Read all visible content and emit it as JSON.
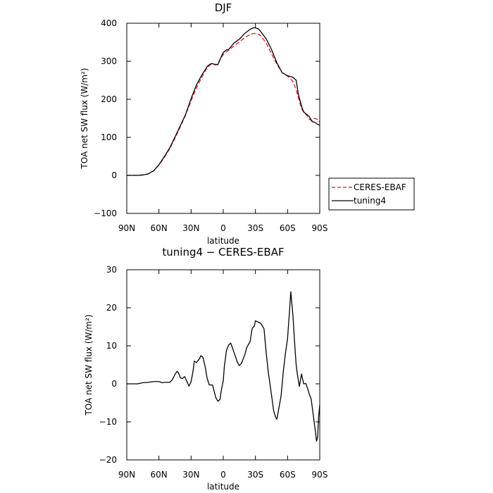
{
  "chart_data": [
    {
      "type": "line",
      "title": "DJF",
      "xlabel": "latitude",
      "ylabel": "TOA net SW flux (W/m²)",
      "xlim": [
        90,
        -90
      ],
      "ylim": [
        -100,
        400
      ],
      "x_ticks": [
        90,
        60,
        30,
        0,
        -30,
        -60,
        -90
      ],
      "x_tick_labels": [
        "90N",
        "60N",
        "30N",
        "0",
        "30S",
        "60S",
        "90S"
      ],
      "y_ticks": [
        -100,
        0,
        100,
        200,
        300,
        400
      ],
      "y_tick_labels": [
        "−100",
        "0",
        "100",
        "200",
        "300",
        "400"
      ],
      "legend_position": "right",
      "series": [
        {
          "name": "CERES-EBAF",
          "color": "#e41a1c",
          "dash": "dashed",
          "x": [
            90,
            85,
            80,
            75,
            70,
            65,
            60,
            55,
            50,
            45,
            40,
            35,
            30,
            25,
            20,
            15,
            12,
            10,
            8,
            5,
            3,
            0,
            -3,
            -5,
            -10,
            -15,
            -20,
            -25,
            -28,
            -30,
            -33,
            -35,
            -40,
            -45,
            -50,
            -55,
            -60,
            -65,
            -68,
            -70,
            -73,
            -75,
            -78,
            -80,
            -83,
            -85,
            -88,
            -90
          ],
          "y": [
            0,
            0,
            0,
            1,
            4,
            12,
            27,
            47,
            70,
            98,
            128,
            160,
            196,
            230,
            258,
            284,
            291,
            293,
            292,
            292,
            304,
            318,
            325,
            329,
            340,
            351,
            362,
            370,
            373,
            373,
            371,
            367,
            348,
            320,
            292,
            270,
            261,
            247,
            225,
            205,
            176,
            166,
            158,
            148,
            144,
            150,
            147,
            140
          ]
        },
        {
          "name": "tuning4",
          "color": "#000000",
          "dash": "solid",
          "x": [
            90,
            85,
            80,
            75,
            70,
            65,
            60,
            55,
            50,
            45,
            40,
            35,
            30,
            25,
            20,
            15,
            12,
            10,
            8,
            5,
            3,
            0,
            -3,
            -5,
            -10,
            -15,
            -20,
            -25,
            -28,
            -30,
            -33,
            -35,
            -40,
            -45,
            -50,
            -55,
            -60,
            -65,
            -68,
            -70,
            -73,
            -75,
            -78,
            -80,
            -83,
            -85,
            -88,
            -90
          ],
          "y": [
            0,
            0,
            0,
            1,
            4,
            12,
            28,
            49,
            72,
            101,
            131,
            161,
            202,
            238,
            264,
            286,
            293,
            294,
            291,
            291,
            305,
            323,
            330,
            331,
            348,
            358,
            373,
            384,
            388,
            388,
            385,
            378,
            359,
            331,
            296,
            270,
            262,
            258,
            250,
            214,
            182,
            167,
            160,
            155,
            141,
            140,
            134,
            132
          ]
        }
      ]
    },
    {
      "type": "line",
      "title": "tuning4 − CERES-EBAF",
      "xlabel": "latitude",
      "ylabel": "TOA net SW flux (W/m²)",
      "xlim": [
        90,
        -90
      ],
      "ylim": [
        -20,
        30
      ],
      "x_ticks": [
        90,
        60,
        30,
        0,
        -30,
        -60,
        -90
      ],
      "x_tick_labels": [
        "90N",
        "60N",
        "30N",
        "0",
        "30S",
        "60S",
        "90S"
      ],
      "y_ticks": [
        -20,
        -10,
        0,
        10,
        20,
        30
      ],
      "y_tick_labels": [
        "−20",
        "−10",
        "0",
        "10",
        "20",
        "30"
      ],
      "series": [
        {
          "color": "#000000",
          "dash": "solid",
          "x": [
            90,
            80,
            75,
            70,
            65,
            60,
            57,
            54,
            50,
            48,
            46,
            45,
            43,
            42,
            40,
            38,
            36,
            34,
            32,
            30,
            28,
            27,
            25,
            22,
            21,
            19,
            17,
            15,
            13,
            10,
            7,
            5,
            3,
            2,
            0,
            -1,
            -3,
            -5,
            -7,
            -10,
            -13,
            -15,
            -17,
            -20,
            -22,
            -25,
            -27,
            -29,
            -30,
            -32,
            -35,
            -38,
            -40,
            -42,
            -45,
            -47,
            -49,
            -50,
            -52,
            -54,
            -56,
            -58,
            -60,
            -62,
            -63,
            -65,
            -66,
            -67,
            -68,
            -69,
            -70,
            -71,
            -73,
            -75,
            -77,
            -79,
            -80,
            -82,
            -84,
            -86,
            -87,
            -88,
            -89,
            -90
          ],
          "y": [
            0,
            0,
            0.3,
            0.4,
            0.6,
            0.6,
            0.3,
            0.4,
            0.4,
            0.9,
            1.9,
            2.5,
            3.3,
            3.0,
            1.6,
            1.4,
            1.9,
            0.7,
            -0.6,
            0.5,
            3.7,
            6.0,
            5.6,
            6.7,
            7.4,
            7.0,
            4.7,
            1.4,
            -0.3,
            -0.3,
            -3.6,
            -4.6,
            -4.1,
            -2.0,
            0.8,
            4.5,
            8.8,
            10.2,
            10.7,
            8.3,
            5.8,
            4.8,
            5.4,
            7.6,
            9.6,
            11.1,
            14.6,
            15.2,
            16.6,
            16.3,
            15.9,
            14.5,
            8.3,
            3.1,
            -2.9,
            -7.1,
            -8.9,
            -9.3,
            -6.2,
            -3.0,
            3.2,
            8.0,
            12.0,
            20.0,
            24.2,
            18.0,
            13.3,
            9.0,
            5.0,
            2.8,
            1.0,
            -0.7,
            2.6,
            0.0,
            0.1,
            -1.5,
            -2.5,
            -4.0,
            -8.3,
            -12.7,
            -15.1,
            -14.0,
            -8.5,
            -5.5
          ]
        }
      ]
    }
  ]
}
